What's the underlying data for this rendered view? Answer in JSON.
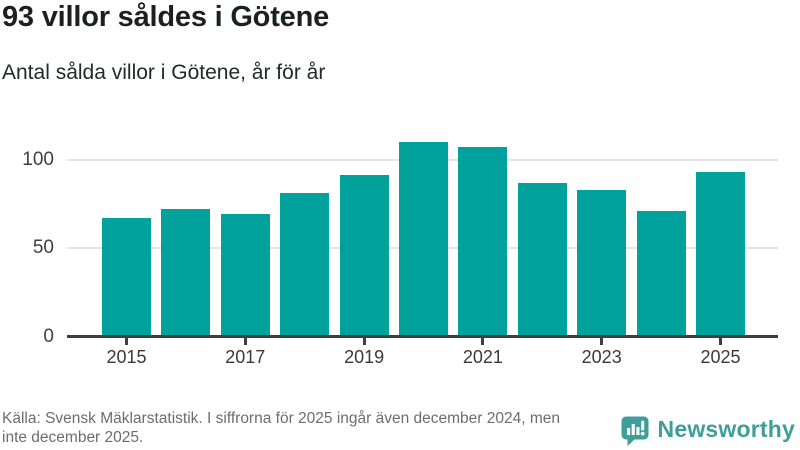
{
  "page": {
    "title": "93 villor såldes i Götene",
    "subtitle": "Antal sålda villor i Götene, år för år"
  },
  "chart_data": {
    "type": "bar",
    "categories": [
      "2015",
      "2016",
      "2017",
      "2018",
      "2019",
      "2020",
      "2021",
      "2022",
      "2023",
      "2024",
      "2025"
    ],
    "values": [
      67,
      72,
      69,
      81,
      91,
      110,
      107,
      87,
      83,
      71,
      93
    ],
    "title": "93 villor såldes i Götene",
    "subtitle": "Antal sålda villor i Götene, år för år",
    "xlabel": "",
    "ylabel": "",
    "y_ticks": [
      0,
      50,
      100
    ],
    "x_tick_labels": [
      "2015",
      "2017",
      "2019",
      "2021",
      "2023",
      "2025"
    ],
    "ylim": [
      0,
      114
    ],
    "grid": true,
    "legend_position": "none",
    "bar_color": "#00a29b"
  },
  "footer": {
    "lines": [
      "Källa: Svensk Mäklarstatistik. I siffrorna för 2025 ingår även december 2024, men",
      "inte december 2025."
    ],
    "brand_name": "Newsworthy"
  },
  "colors": {
    "bar": "#00a29b",
    "brand_teal": "#3f9e9a",
    "grid_line": "#e4e4e4",
    "axis_line": "#3e3e3e",
    "title_text": "#1b2022",
    "axis_text": "#3f3f3f",
    "muted_text": "#6d6d6d"
  }
}
